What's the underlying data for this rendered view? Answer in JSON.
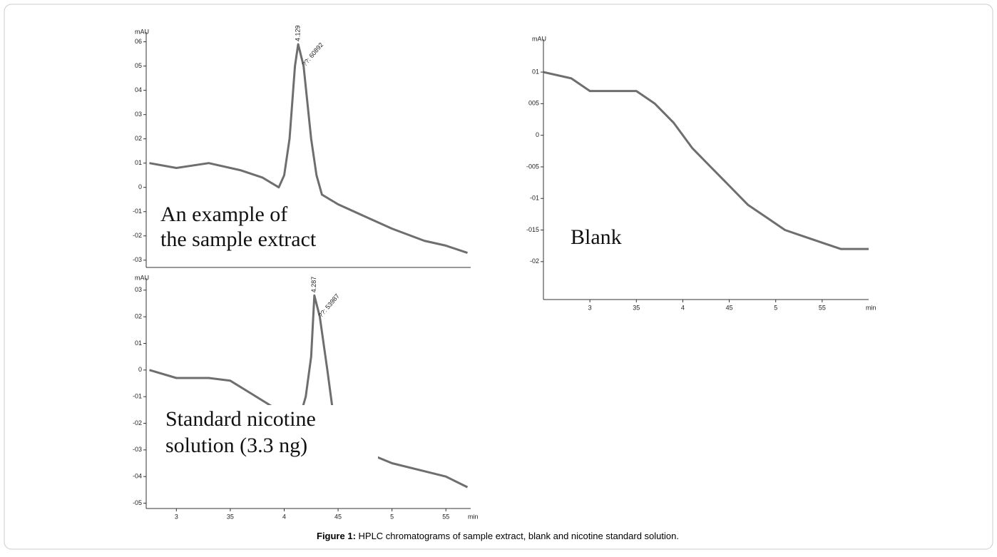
{
  "chart_data": [
    {
      "type": "line",
      "ylabel": "mAU",
      "annotation": [
        "An example of",
        "the sample extract"
      ],
      "peak_labels": [
        "4.129",
        "??: 60892"
      ],
      "x": [
        2.75,
        3.0,
        3.3,
        3.6,
        3.8,
        3.95,
        4.0,
        4.05,
        4.1,
        4.13,
        4.18,
        4.25,
        4.3,
        4.35,
        4.5,
        4.8,
        5.0,
        5.3,
        5.5,
        5.7
      ],
      "values": [
        0.1,
        0.08,
        0.1,
        0.07,
        0.04,
        0.0,
        0.05,
        0.2,
        0.5,
        0.59,
        0.5,
        0.2,
        0.05,
        -0.03,
        -0.07,
        -0.13,
        -0.17,
        -0.22,
        -0.24,
        -0.27
      ],
      "color": "#555555",
      "xlim": [
        2.72,
        5.73
      ],
      "ylim": [
        -0.33,
        0.64
      ],
      "yticks": [
        {
          "value": 0.6,
          "label": "06"
        },
        {
          "value": 0.5,
          "label": "05"
        },
        {
          "value": 0.4,
          "label": "04"
        },
        {
          "value": 0.3,
          "label": "03"
        },
        {
          "value": 0.2,
          "label": "02"
        },
        {
          "value": 0.1,
          "label": "01"
        },
        0,
        {
          "value": -0.1,
          "label": "-01"
        },
        {
          "value": -0.2,
          "label": "-02"
        },
        {
          "value": -0.3,
          "label": "-03"
        }
      ]
    },
    {
      "type": "line",
      "ylabel": "mAU",
      "xlabel": "min",
      "annotation": [
        "Blank"
      ],
      "x": [
        2.5,
        2.8,
        3.0,
        3.3,
        3.5,
        3.7,
        3.9,
        4.1,
        4.3,
        4.5,
        4.7,
        4.9,
        5.1,
        5.3,
        5.5,
        5.7,
        6.0
      ],
      "values": [
        0.1,
        0.09,
        0.07,
        0.07,
        0.07,
        0.05,
        0.02,
        -0.02,
        -0.05,
        -0.08,
        -0.11,
        -0.13,
        -0.15,
        -0.16,
        -0.17,
        -0.18,
        -0.18
      ],
      "color": "#555555",
      "xlim": [
        2.5,
        6.0
      ],
      "ylim": [
        -0.26,
        0.152
      ],
      "xticks": [
        3,
        {
          "value": 3.5,
          "label": "35"
        },
        4,
        {
          "value": 4.5,
          "label": "45"
        },
        5,
        {
          "value": 5.5,
          "label": "55"
        }
      ],
      "yticks": [
        {
          "value": 0.1,
          "label": "01"
        },
        {
          "value": 0.05,
          "label": "005"
        },
        0,
        {
          "value": -0.05,
          "label": "-005"
        },
        {
          "value": -0.1,
          "label": "-01"
        },
        {
          "value": -0.15,
          "label": "-015"
        },
        {
          "value": -0.2,
          "label": "-02"
        }
      ]
    },
    {
      "type": "line",
      "ylabel": "mAU",
      "xlabel": "min",
      "annotation": [
        "Standard nicotine",
        "solution (3.3 ng)"
      ],
      "peak_labels": [
        "4.287",
        "??: 53987"
      ],
      "x": [
        2.75,
        3.0,
        3.3,
        3.5,
        3.7,
        3.9,
        4.05,
        4.15,
        4.2,
        4.25,
        4.28,
        4.33,
        4.4,
        4.45,
        4.5,
        4.7,
        5.0,
        5.3,
        5.5,
        5.7
      ],
      "values": [
        0.0,
        -0.03,
        -0.03,
        -0.04,
        -0.09,
        -0.14,
        -0.16,
        -0.17,
        -0.1,
        0.05,
        0.28,
        0.2,
        0.0,
        -0.15,
        -0.25,
        -0.3,
        -0.35,
        -0.38,
        -0.4,
        -0.44
      ],
      "color": "#555555",
      "xlim": [
        2.72,
        5.73
      ],
      "ylim": [
        -0.52,
        0.345
      ],
      "xticks": [
        3,
        {
          "value": 3.5,
          "label": "35"
        },
        4,
        {
          "value": 4.5,
          "label": "45"
        },
        5,
        {
          "value": 5.5,
          "label": "55"
        }
      ],
      "yticks": [
        {
          "value": 0.3,
          "label": "03"
        },
        {
          "value": 0.2,
          "label": "02"
        },
        {
          "value": 0.1,
          "label": "01"
        },
        0,
        {
          "value": -0.1,
          "label": "-01"
        },
        {
          "value": -0.2,
          "label": "-02"
        },
        {
          "value": -0.3,
          "label": "-03"
        },
        {
          "value": -0.4,
          "label": "-04"
        },
        {
          "value": -0.5,
          "label": "-05"
        }
      ]
    }
  ],
  "caption": {
    "label": "Figure 1:",
    "text": " HPLC chromatograms of sample extract, blank and nicotine standard solution."
  }
}
